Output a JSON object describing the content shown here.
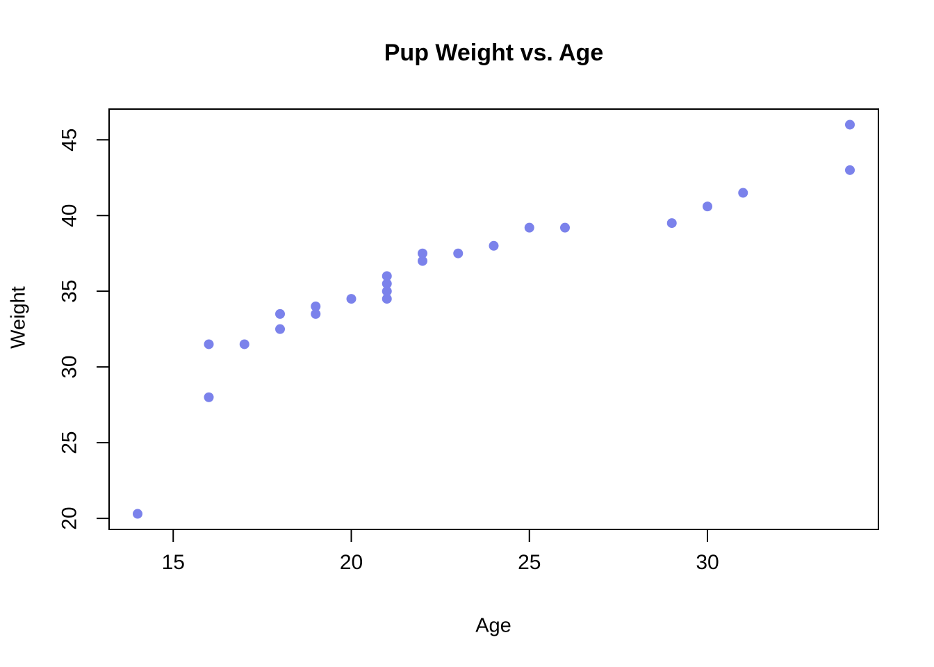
{
  "chart_data": {
    "type": "scatter",
    "title": "Pup Weight vs. Age",
    "xlabel": "Age",
    "ylabel": "Weight",
    "x_ticks": [
      15,
      20,
      25,
      30
    ],
    "y_ticks": [
      20,
      25,
      30,
      35,
      40,
      45
    ],
    "xlim": [
      13.2,
      34.8
    ],
    "ylim": [
      19.27,
      47.03
    ],
    "grid": false,
    "legend": "none",
    "point_color": "#7b82eb",
    "axis_color": "#000000",
    "background_color": "#ffffff",
    "points": [
      {
        "age": 14,
        "weight": 20.3
      },
      {
        "age": 16,
        "weight": 28.0
      },
      {
        "age": 16,
        "weight": 31.5
      },
      {
        "age": 17,
        "weight": 31.5
      },
      {
        "age": 18,
        "weight": 32.5
      },
      {
        "age": 18,
        "weight": 33.5
      },
      {
        "age": 19,
        "weight": 33.5
      },
      {
        "age": 19,
        "weight": 34.0
      },
      {
        "age": 20,
        "weight": 34.5
      },
      {
        "age": 21,
        "weight": 34.5
      },
      {
        "age": 21,
        "weight": 35.0
      },
      {
        "age": 21,
        "weight": 35.5
      },
      {
        "age": 21,
        "weight": 36.0
      },
      {
        "age": 22,
        "weight": 37.0
      },
      {
        "age": 22,
        "weight": 37.5
      },
      {
        "age": 23,
        "weight": 37.5
      },
      {
        "age": 24,
        "weight": 38.0
      },
      {
        "age": 25,
        "weight": 39.2
      },
      {
        "age": 26,
        "weight": 39.2
      },
      {
        "age": 29,
        "weight": 39.5
      },
      {
        "age": 30,
        "weight": 40.6
      },
      {
        "age": 31,
        "weight": 41.5
      },
      {
        "age": 34,
        "weight": 43.0
      },
      {
        "age": 34,
        "weight": 46.0
      }
    ]
  }
}
